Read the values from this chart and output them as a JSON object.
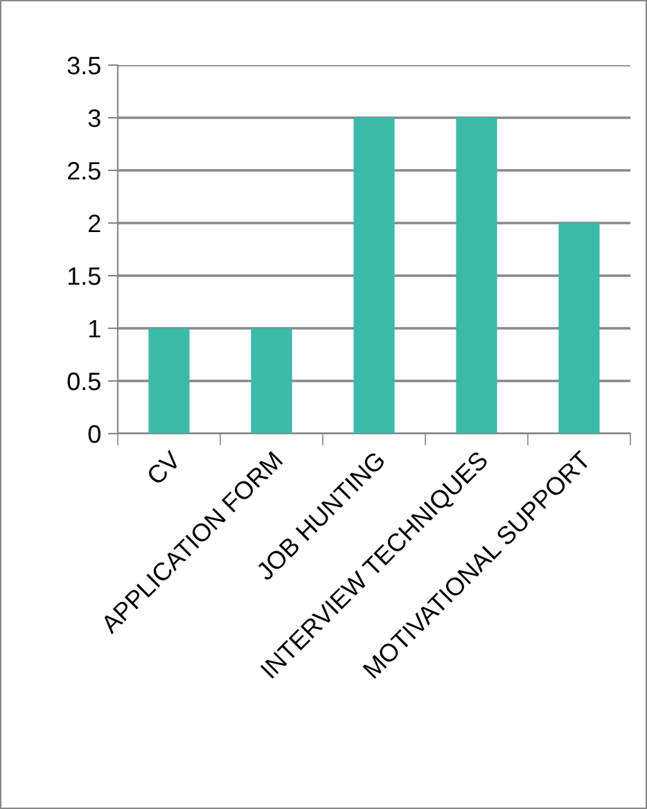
{
  "chart_data": {
    "type": "bar",
    "categories": [
      "CV",
      "APPLICATION FORM",
      "JOB HUNTING",
      "INTERVIEW TECHNIQUES",
      "MOTIVATIONAL SUPPORT"
    ],
    "values": [
      1,
      1,
      3,
      3,
      2
    ],
    "color": "#3bbaa9",
    "ylim": [
      0,
      3.5
    ],
    "yticks": [
      0,
      0.5,
      1,
      1.5,
      2,
      2.5,
      3,
      3.5
    ],
    "grid": "y",
    "legend": false
  }
}
